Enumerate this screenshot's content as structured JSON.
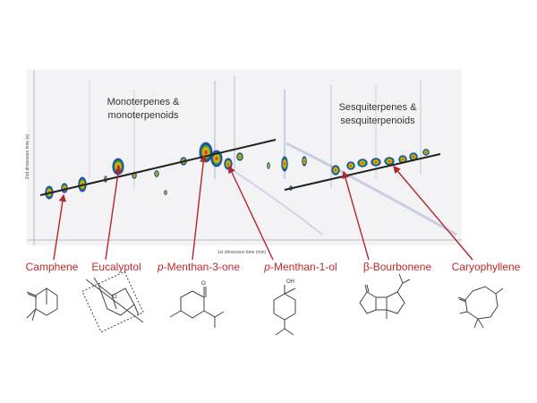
{
  "plot": {
    "x_axis_label": "1st dimension time (min)",
    "y_axis_label": "2nd dimension time (s)"
  },
  "groups": [
    {
      "lines": [
        "Monoterpenes &",
        "monoterpenoids"
      ]
    },
    {
      "lines": [
        "Sesquiterpenes &",
        "sesquiterpenoids"
      ]
    }
  ],
  "compounds": [
    {
      "label": "Camphene"
    },
    {
      "label": "Eucalyptol",
      "atom": "O"
    },
    {
      "prefix": "p",
      "label": "-Menthan-3-one",
      "atom": "O"
    },
    {
      "prefix": "p",
      "label": "-Menthan-1-ol",
      "atom": "OH"
    },
    {
      "label": "β-Bourbonene"
    },
    {
      "label": "Caryophyllene"
    }
  ]
}
